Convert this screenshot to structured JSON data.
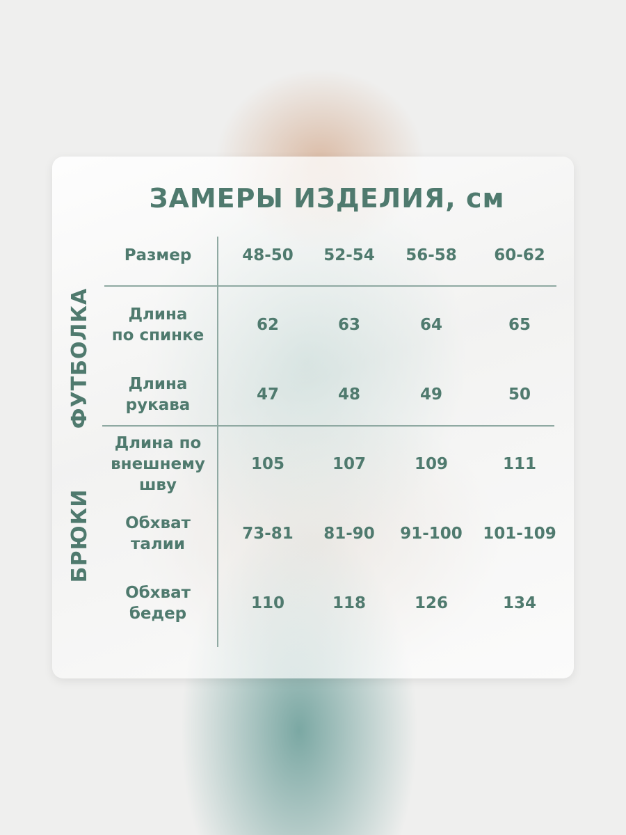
{
  "title": "ЗАМЕРЫ ИЗДЕЛИЯ, см",
  "header_label": "Размер",
  "sizes": [
    "48-50",
    "52-54",
    "56-58",
    "60-62"
  ],
  "groups": [
    {
      "name": "ФУТБОЛКА",
      "rows": [
        {
          "label": "Длина\nпо спинке",
          "values": [
            "62",
            "63",
            "64",
            "65"
          ]
        },
        {
          "label": "Длина\nрукава",
          "values": [
            "47",
            "48",
            "49",
            "50"
          ]
        }
      ]
    },
    {
      "name": "БРЮКИ",
      "rows": [
        {
          "label": "Длина по\nвнешнему\nшву",
          "values": [
            "105",
            "107",
            "109",
            "111"
          ]
        },
        {
          "label": "Обхват\nталии",
          "values": [
            "73-81",
            "81-90",
            "91-100",
            "101-109"
          ]
        },
        {
          "label": "Обхват\nбедер",
          "values": [
            "110",
            "118",
            "126",
            "134"
          ]
        }
      ]
    }
  ],
  "colors": {
    "text": "#4f7a6e",
    "lines": "#8fa9a2"
  }
}
